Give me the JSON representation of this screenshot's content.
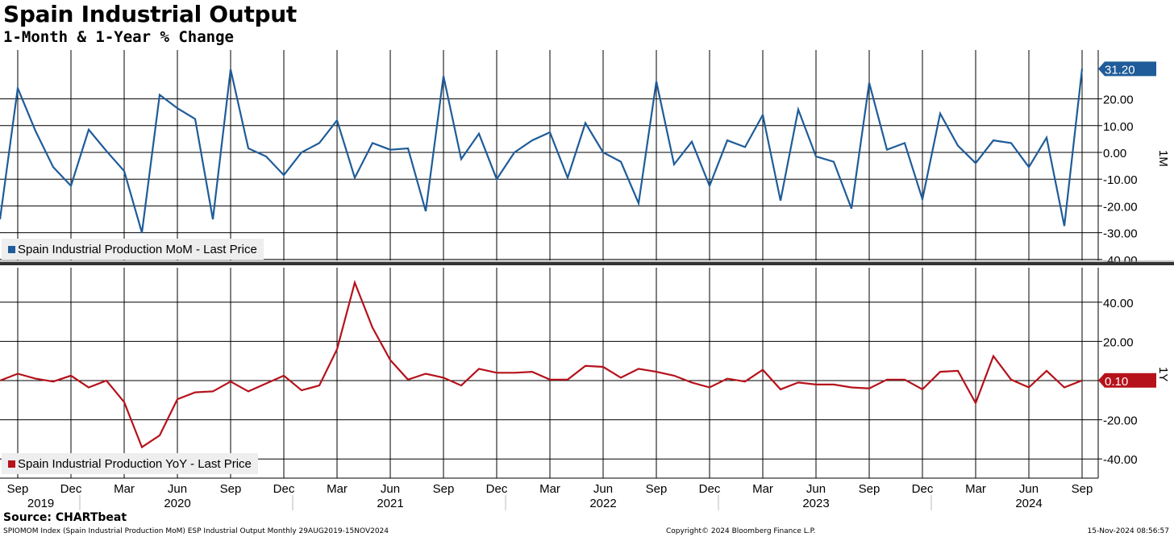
{
  "header": {
    "title": "Spain Industrial Output",
    "subtitle": "1-Month & 1-Year % Change"
  },
  "footer": {
    "source": "Source: CHARTbeat",
    "left": "SPIOMOM Index (Spain Industrial Production MoM) ESP Industrial Output  Monthly 29AUG2019-15NOV2024",
    "center": "Copyright© 2024 Bloomberg Finance L.P.",
    "right": "15-Nov-2024 08:56:57"
  },
  "colors": {
    "mom": "#1f5c99",
    "yoy": "#b5121b"
  },
  "chart_data": [
    {
      "type": "line",
      "panel_label": "1M",
      "ylim": [
        -42,
        32
      ],
      "yticks": [
        20,
        10,
        0,
        -10,
        -20,
        -30,
        -40
      ],
      "ytick_labels": [
        "20.00",
        "10.00",
        "0.00",
        "-10.00",
        "-20.00",
        "-30.00",
        "-40.00"
      ],
      "last_value_label": "31.20",
      "legend": "Spain Industrial Production MoM - Last Price",
      "legend_position": "bottom-left",
      "grid": true,
      "x_start": "2019-08",
      "series": [
        {
          "name": "Spain Industrial Production MoM - Last Price",
          "color": "#1f5c99",
          "values": [
            -25,
            24,
            8,
            -5.5,
            -12.5,
            8.5,
            0.5,
            -7,
            -30,
            21.5,
            16.5,
            12.5,
            -25,
            31,
            1.5,
            -1.5,
            -8.5,
            0,
            3.5,
            12,
            -9.5,
            3.5,
            1,
            1.5,
            -22,
            28.5,
            -2.5,
            7,
            -10,
            0,
            4.5,
            7.5,
            -9.5,
            11,
            0,
            -3.5,
            -19,
            26.5,
            -4.5,
            4,
            -12.5,
            4.5,
            2,
            14,
            -18,
            16,
            -1.5,
            -3.5,
            -21,
            26,
            1,
            3.5,
            -17.5,
            14.5,
            2.5,
            -4,
            4.5,
            3.5,
            -5.5,
            5.5,
            -27.5,
            31.2
          ]
        }
      ]
    },
    {
      "type": "line",
      "panel_label": "1Y",
      "ylim": [
        -48,
        58
      ],
      "yticks": [
        40,
        20,
        0,
        -20,
        -40
      ],
      "ytick_labels": [
        "40.00",
        "20.00",
        "",
        "-20.00",
        "-40.00"
      ],
      "last_value_label": "0.10",
      "legend": "Spain Industrial Production YoY - Last Price",
      "legend_position": "bottom-left",
      "grid": true,
      "x_start": "2019-08",
      "series": [
        {
          "name": "Spain Industrial Production YoY - Last Price",
          "color": "#b5121b",
          "values": [
            0,
            3.5,
            1,
            -0.5,
            2.5,
            -3.5,
            0,
            -11,
            -34,
            -28,
            -9.5,
            -6,
            -5.5,
            -0.5,
            -5.5,
            -1.5,
            2.5,
            -5,
            -2.5,
            16,
            50,
            27,
            10.5,
            0.5,
            3.5,
            1.5,
            -2.5,
            6,
            4,
            4,
            4.5,
            0.5,
            0.5,
            7.5,
            7,
            1.5,
            6,
            4.5,
            2.5,
            -1,
            -3.5,
            1,
            -0.5,
            5.5,
            -4.5,
            -1,
            -2,
            -2,
            -3.5,
            -4,
            0.5,
            0.5,
            -4.5,
            4.5,
            5,
            -11.5,
            12.5,
            0.5,
            -3.5,
            5,
            -3.5,
            0.1
          ]
        }
      ]
    }
  ],
  "x_axis": {
    "month_labels": [
      {
        "label": "Sep",
        "index": 1
      },
      {
        "label": "Dec",
        "index": 4
      },
      {
        "label": "Mar",
        "index": 7
      },
      {
        "label": "Jun",
        "index": 10
      },
      {
        "label": "Sep",
        "index": 13
      },
      {
        "label": "Dec",
        "index": 16
      },
      {
        "label": "Mar",
        "index": 19
      },
      {
        "label": "Jun",
        "index": 22
      },
      {
        "label": "Sep",
        "index": 25
      },
      {
        "label": "Dec",
        "index": 28
      },
      {
        "label": "Mar",
        "index": 31
      },
      {
        "label": "Jun",
        "index": 34
      },
      {
        "label": "Sep",
        "index": 37
      },
      {
        "label": "Dec",
        "index": 40
      },
      {
        "label": "Mar",
        "index": 43
      },
      {
        "label": "Jun",
        "index": 46
      },
      {
        "label": "Sep",
        "index": 49
      },
      {
        "label": "Dec",
        "index": 52
      },
      {
        "label": "Mar",
        "index": 55
      },
      {
        "label": "Jun",
        "index": 58
      },
      {
        "label": "Sep",
        "index": 61
      }
    ],
    "year_labels": [
      {
        "label": "2019",
        "center_index": 2.3
      },
      {
        "label": "2020",
        "center_index": 10
      },
      {
        "label": "2021",
        "center_index": 22
      },
      {
        "label": "2022",
        "center_index": 34
      },
      {
        "label": "2023",
        "center_index": 46
      },
      {
        "label": "2024",
        "center_index": 58
      }
    ],
    "year_boundaries": [
      4.5,
      16.5,
      28.5,
      40.5,
      52.5
    ]
  }
}
